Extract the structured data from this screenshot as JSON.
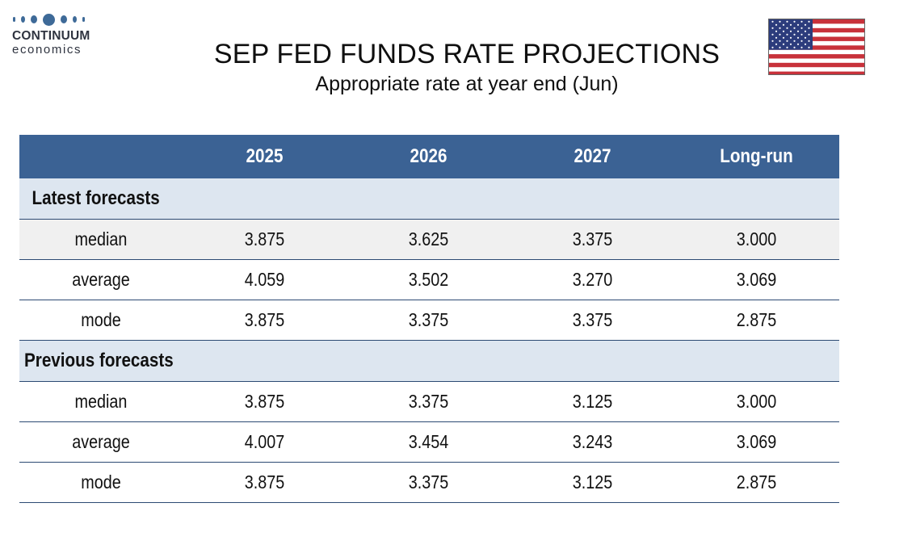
{
  "logo": {
    "name": "CONTINUUM",
    "sub": "economics"
  },
  "title": "SEP FED FUNDS RATE PROJECTIONS",
  "subtitle": "Appropriate rate at year end (Jun)",
  "flag": {
    "icon": "us-flag-icon",
    "colors": {
      "red": "#c8313a",
      "white": "#ffffff",
      "blue": "#2c3c7c"
    }
  },
  "colors": {
    "header": "#3b6294",
    "section": "#dde6f0",
    "row_alt": "#f0f0f0"
  },
  "table": {
    "headers": [
      "",
      "2025",
      "2026",
      "2027",
      "Long-run"
    ],
    "sections": [
      {
        "label": "Latest forecasts",
        "rows": [
          {
            "label": "median",
            "values": [
              "3.875",
              "3.625",
              "3.375",
              "3.000"
            ]
          },
          {
            "label": "average",
            "values": [
              "4.059",
              "3.502",
              "3.270",
              "3.069"
            ]
          },
          {
            "label": "mode",
            "values": [
              "3.875",
              "3.375",
              "3.375",
              "2.875"
            ]
          }
        ]
      },
      {
        "label": "Previous forecasts",
        "rows": [
          {
            "label": "median",
            "values": [
              "3.875",
              "3.375",
              "3.125",
              "3.000"
            ]
          },
          {
            "label": "average",
            "values": [
              "4.007",
              "3.454",
              "3.243",
              "3.069"
            ]
          },
          {
            "label": "mode",
            "values": [
              "3.875",
              "3.375",
              "3.125",
              "2.875"
            ]
          }
        ]
      }
    ]
  }
}
